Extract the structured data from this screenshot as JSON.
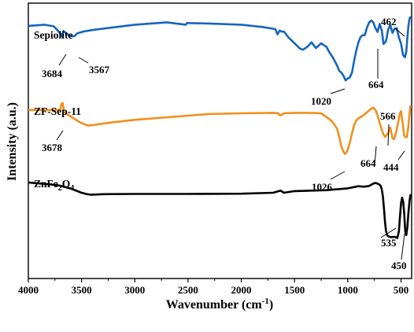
{
  "chart_data": {
    "type": "line",
    "title": "",
    "xlabel": "Wavenumber (cm",
    "xlabel_sup": "-1",
    "xlabel_end": ")",
    "ylabel": "Intensity (a.u.)",
    "xlim": [
      4000,
      400
    ],
    "x_reversed": true,
    "x_ticks": [
      4000,
      3500,
      3000,
      2500,
      2000,
      1500,
      1000,
      500
    ],
    "y_ticks_shown": false,
    "grid": false,
    "legend": "none",
    "series": [
      {
        "name": "Sepiolite",
        "color": "#1565c0",
        "x": [
          4000,
          3850,
          3760,
          3720,
          3690,
          3684,
          3670,
          3640,
          3620,
          3600,
          3567,
          3540,
          3480,
          3400,
          3300,
          3000,
          2700,
          2520,
          2510,
          2500,
          2300,
          2000,
          1800,
          1680,
          1660,
          1640,
          1620,
          1600,
          1560,
          1500,
          1450,
          1420,
          1380,
          1340,
          1300,
          1250,
          1200,
          1170,
          1140,
          1100,
          1080,
          1060,
          1040,
          1020,
          1000,
          980,
          960,
          940,
          920,
          900,
          880,
          860,
          840,
          820,
          800,
          780,
          760,
          740,
          720,
          700,
          680,
          664,
          640,
          620,
          600,
          580,
          560,
          540,
          520,
          500,
          480,
          462,
          450,
          440,
          430,
          420,
          410
        ],
        "y": [
          100,
          100.5,
          99.8,
          97.8,
          96,
          95.5,
          97.8,
          96.8,
          95.8,
          95.6,
          95.6,
          96.8,
          97.6,
          98.2,
          98.8,
          100.5,
          101.5,
          100.5,
          101.3,
          101.2,
          101,
          100.5,
          99.5,
          98.6,
          96.4,
          98,
          97.5,
          97.6,
          95.2,
          92.5,
          90.3,
          89.8,
          91,
          93,
          90.5,
          92.5,
          91,
          88.5,
          86.5,
          83,
          80.8,
          80,
          78.6,
          76.7,
          77.5,
          78,
          80,
          85,
          89.5,
          93,
          95.2,
          96,
          96,
          99.2,
          101.4,
          102.3,
          101.5,
          99,
          97.4,
          100.8,
          98,
          92.2,
          93.5,
          98.5,
          100.3,
          97,
          98.8,
          99,
          95,
          92.4,
          87.4,
          86.6,
          89,
          95,
          100,
          103,
          104
        ]
      },
      {
        "name": "ZF-Sep-11",
        "color": "#f0901e",
        "x": [
          4000,
          3800,
          3720,
          3700,
          3690,
          3678,
          3665,
          3650,
          3620,
          3560,
          3500,
          3440,
          3400,
          3300,
          3200,
          3000,
          2500,
          2300,
          2000,
          1700,
          1650,
          1640,
          1630,
          1600,
          1500,
          1400,
          1300,
          1250,
          1200,
          1150,
          1100,
          1080,
          1060,
          1040,
          1026,
          1010,
          1000,
          980,
          960,
          940,
          920,
          900,
          860,
          820,
          780,
          760,
          740,
          720,
          700,
          680,
          664,
          650,
          620,
          600,
          580,
          566,
          550,
          530,
          510,
          500,
          490,
          470,
          455,
          444,
          430,
          420,
          410
        ],
        "y": [
          64,
          64,
          64,
          64.2,
          66.5,
          67,
          63.3,
          62.5,
          61.8,
          60,
          58.4,
          57.3,
          57.5,
          58.2,
          58.8,
          59.8,
          61.6,
          62.3,
          62.6,
          62.8,
          62.6,
          61.8,
          61.7,
          62.6,
          62.8,
          62.8,
          62.7,
          62.6,
          61,
          59.3,
          56,
          52.5,
          48.5,
          46.2,
          45.2,
          46,
          47,
          50,
          54,
          57.5,
          59.5,
          60.5,
          61.5,
          63,
          64.5,
          65,
          64,
          61.8,
          58.5,
          55.5,
          53.5,
          52.5,
          54,
          56.5,
          52,
          51.5,
          53.5,
          58,
          62.5,
          63.5,
          60.5,
          53,
          52.3,
          52.5,
          57,
          62.5,
          66
        ]
      },
      {
        "name": "ZnFe2O4",
        "color": "#000000",
        "x": [
          4000,
          3800,
          3700,
          3600,
          3500,
          3450,
          3420,
          3400,
          3300,
          3000,
          2500,
          2000,
          1700,
          1630,
          1600,
          1500,
          1400,
          1200,
          1000,
          900,
          850,
          800,
          760,
          740,
          720,
          700,
          690,
          680,
          670,
          660,
          650,
          640,
          630,
          620,
          610,
          600,
          590,
          580,
          560,
          540,
          535,
          520,
          510,
          500,
          490,
          480,
          470,
          460,
          450,
          440,
          430,
          420,
          410
        ],
        "y": [
          33,
          32.2,
          31.6,
          30.4,
          28.6,
          28,
          27.8,
          27.8,
          28,
          28.1,
          28.1,
          28.2,
          28.6,
          29.5,
          28.6,
          29.3,
          29.4,
          29.7,
          30.5,
          31.4,
          31.2,
          31.5,
          32.5,
          32.8,
          32.5,
          32,
          31.5,
          30,
          27,
          22,
          16,
          12,
          10.5,
          10,
          9.8,
          9.7,
          9.6,
          9.7,
          9.7,
          9.5,
          9.2,
          12,
          18,
          24,
          26.5,
          25,
          20,
          12,
          10.5,
          14,
          20,
          25,
          28
        ]
      }
    ],
    "annotations": [
      {
        "series": "Sepiolite",
        "text": "3684",
        "x": 3684
      },
      {
        "series": "Sepiolite",
        "text": "3567",
        "x": 3567
      },
      {
        "series": "Sepiolite",
        "text": "1020",
        "x": 1020
      },
      {
        "series": "Sepiolite",
        "text": "664",
        "x": 664
      },
      {
        "series": "Sepiolite",
        "text": "462",
        "x": 462
      },
      {
        "series": "ZF-Sep-11",
        "text": "3678",
        "x": 3678
      },
      {
        "series": "ZF-Sep-11",
        "text": "1026",
        "x": 1026
      },
      {
        "series": "ZF-Sep-11",
        "text": "664",
        "x": 664
      },
      {
        "series": "ZF-Sep-11",
        "text": "566",
        "x": 566
      },
      {
        "series": "ZF-Sep-11",
        "text": "444",
        "x": 444
      },
      {
        "series": "ZnFe2O4",
        "text": "535",
        "x": 535
      },
      {
        "series": "ZnFe2O4",
        "text": "450",
        "x": 450
      }
    ]
  }
}
